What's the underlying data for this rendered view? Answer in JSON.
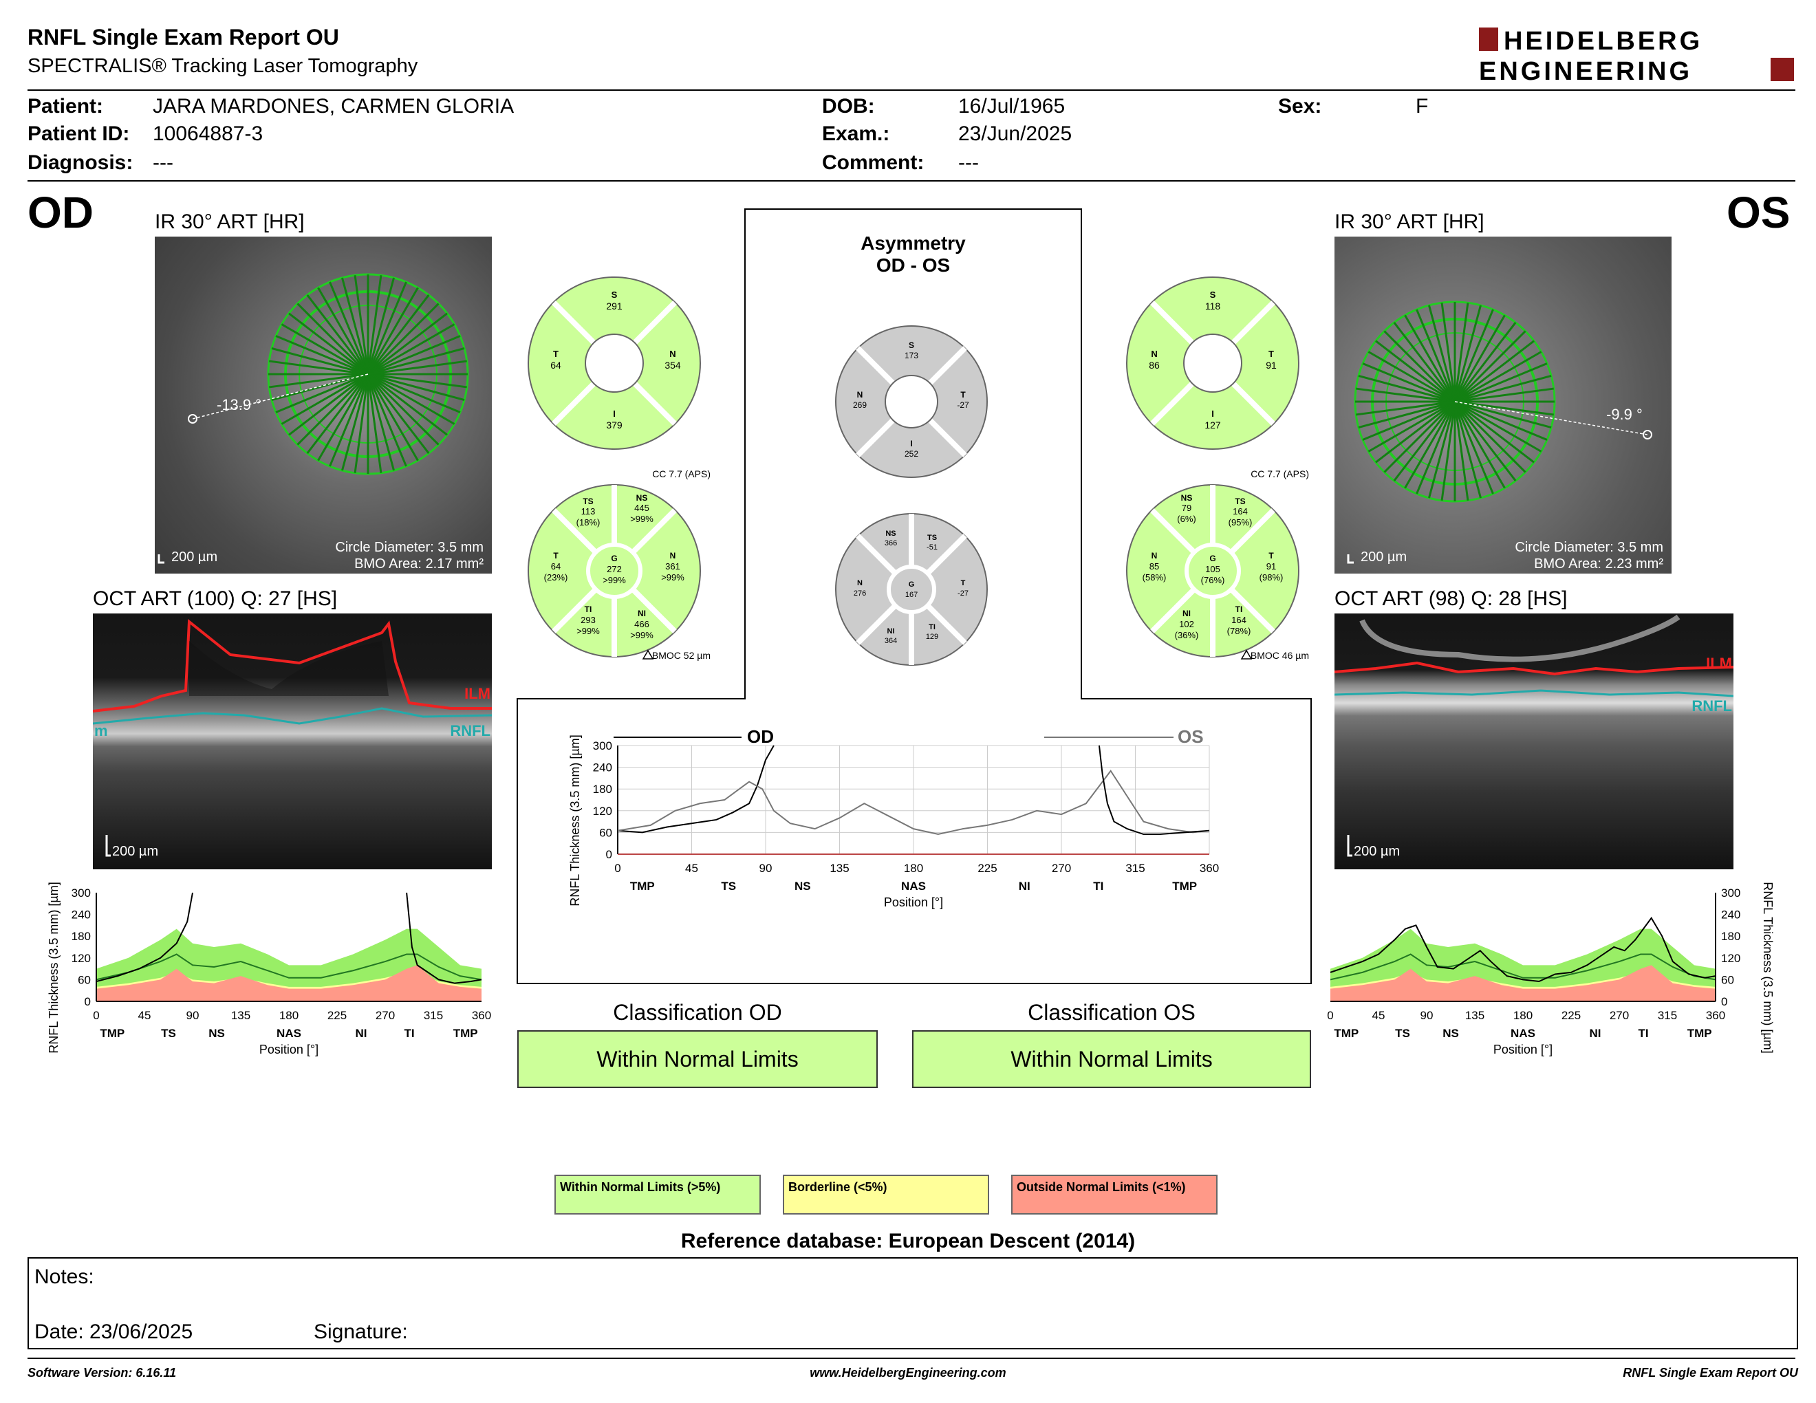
{
  "header": {
    "title": "RNFL Single Exam Report OU",
    "subtitle": "SPECTRALIS® Tracking Laser Tomography",
    "logo_line1": "HEIDELBERG",
    "logo_line2": "ENGINEERING"
  },
  "patient": {
    "patient_label": "Patient:",
    "patient": "JARA MARDONES, CARMEN GLORIA",
    "id_label": "Patient ID:",
    "id": "10064887-3",
    "diagnosis_label": "Diagnosis:",
    "diagnosis": "---",
    "dob_label": "DOB:",
    "dob": "16/Jul/1965",
    "exam_label": "Exam.:",
    "exam": "23/Jun/2025",
    "comment_label": "Comment:",
    "comment": "---",
    "sex_label": "Sex:",
    "sex": "F"
  },
  "od": {
    "eye": "OD",
    "ir_caption": "IR 30° ART [HR]",
    "angle": "-13.9 °",
    "scale": "200 µm",
    "circle": "Circle Diameter: 3.5 mm",
    "bmo": "BMO Area: 2.17 mm²",
    "oct_caption": "OCT ART (100) Q: 27 [HS]",
    "oct_scale": "200 µm",
    "ilm": "ILM",
    "rnfl": "RNFL",
    "rnfl_left_frag": "m",
    "quad": {
      "S": "291",
      "N": "354",
      "I": "379",
      "T": "64"
    },
    "cc": "CC 7.7 (APS)",
    "bmoc": "BMOC 52 µm",
    "sectors": {
      "TS": [
        "113",
        "(18%)"
      ],
      "NS": [
        "445",
        ">99%"
      ],
      "T": [
        "64",
        "(23%)"
      ],
      "G": [
        "272",
        ">99%"
      ],
      "N": [
        "361",
        ">99%"
      ],
      "TI": [
        "293",
        ">99%"
      ],
      "NI": [
        "466",
        ">99%"
      ]
    }
  },
  "os": {
    "eye": "OS",
    "ir_caption": "IR 30° ART [HR]",
    "angle": "-9.9 °",
    "scale": "200 µm",
    "circle": "Circle Diameter: 3.5 mm",
    "bmo": "BMO Area: 2.23 mm²",
    "oct_caption": "OCT ART (98) Q: 28 [HS]",
    "oct_scale": "200 µm",
    "ilm": "ILM",
    "rnfl": "RNFL",
    "quad": {
      "S": "118",
      "N": "86",
      "I": "127",
      "T": "91"
    },
    "cc": "CC 7.7 (APS)",
    "bmoc": "BMOC 46 µm",
    "sectors": {
      "NS": [
        "79",
        "(6%)"
      ],
      "TS": [
        "164",
        "(95%)"
      ],
      "N": [
        "85",
        "(58%)"
      ],
      "G": [
        "105",
        "(76%)"
      ],
      "T": [
        "91",
        "(98%)"
      ],
      "NI": [
        "102",
        "(36%)"
      ],
      "TI": [
        "164",
        "(78%)"
      ]
    }
  },
  "asymmetry": {
    "title1": "Asymmetry",
    "title2": "OD - OS",
    "quad": {
      "S": "173",
      "N": "269",
      "T": "-27",
      "I": "252"
    },
    "sectors": {
      "NS": "366",
      "TS": "-51",
      "N": "276",
      "G": "167",
      "T": "-27",
      "NI": "364",
      "TI": "129"
    }
  },
  "chart_data": [
    {
      "type": "line",
      "title": "",
      "legend": [
        "OD",
        "OS"
      ],
      "ylabel": "RNFL Thickness (3.5 mm) [µm]",
      "xlabel": "Position [°]",
      "xlim": [
        0,
        360
      ],
      "ylim": [
        0,
        300
      ],
      "x_ticks": [
        "0",
        "45",
        "90",
        "135",
        "180",
        "225",
        "270",
        "315",
        "360"
      ],
      "y_ticks": [
        "0",
        "60",
        "120",
        "180",
        "240",
        "300"
      ],
      "sectors": [
        "TMP",
        "TS",
        "NS",
        "NAS",
        "NI",
        "TI",
        "TMP"
      ],
      "series": [
        {
          "name": "OD",
          "color": "#000000",
          "x": [
            0,
            15,
            30,
            45,
            60,
            70,
            80,
            85,
            90,
            95
          ],
          "y": [
            65,
            60,
            75,
            85,
            95,
            115,
            140,
            190,
            260,
            300
          ]
        },
        {
          "name": "OS",
          "color": "#777777",
          "x": [
            0,
            20,
            35,
            50,
            65,
            80,
            88,
            95,
            105,
            120,
            135,
            150,
            165,
            180,
            195,
            210,
            225,
            240,
            255,
            270,
            285,
            290,
            300,
            310,
            320,
            335,
            350,
            360
          ],
          "y": [
            65,
            80,
            120,
            140,
            150,
            200,
            180,
            120,
            85,
            70,
            100,
            140,
            105,
            70,
            55,
            70,
            80,
            95,
            120,
            110,
            140,
            170,
            230,
            160,
            90,
            70,
            60,
            65
          ]
        },
        {
          "name": "",
          "color": "#000000",
          "x": [
            293,
            295,
            298,
            302,
            310,
            320,
            330,
            345,
            360
          ],
          "y": [
            300,
            220,
            140,
            90,
            70,
            55,
            55,
            60,
            65
          ]
        }
      ]
    },
    {
      "type": "area",
      "title": "",
      "ylabel": "RNFL Thickness (3.5 mm) [µm]",
      "xlabel": "Position [°]",
      "xlim": [
        0,
        360
      ],
      "ylim": [
        0,
        300
      ],
      "x_ticks": [
        "0",
        "45",
        "90",
        "135",
        "180",
        "225",
        "270",
        "315",
        "360"
      ],
      "y_ticks": [
        "0",
        "60",
        "120",
        "180",
        "240",
        "300"
      ],
      "sectors": [
        "TMP",
        "TS",
        "NS",
        "NAS",
        "NI",
        "TI",
        "TMP"
      ],
      "normal_band_x": [
        0,
        30,
        60,
        75,
        90,
        110,
        135,
        160,
        180,
        210,
        240,
        270,
        290,
        300,
        320,
        340,
        360
      ],
      "normal_upper": [
        90,
        120,
        170,
        200,
        160,
        150,
        160,
        130,
        100,
        100,
        130,
        170,
        200,
        200,
        150,
        100,
        90
      ],
      "normal_mean": [
        60,
        80,
        110,
        130,
        100,
        95,
        110,
        85,
        65,
        65,
        85,
        110,
        130,
        130,
        95,
        70,
        60
      ],
      "lower_5": [
        40,
        50,
        65,
        80,
        60,
        55,
        65,
        50,
        40,
        40,
        50,
        65,
        80,
        80,
        55,
        45,
        40
      ],
      "lower_1": [
        35,
        45,
        60,
        90,
        55,
        50,
        70,
        45,
        35,
        35,
        45,
        60,
        90,
        100,
        50,
        40,
        35
      ],
      "series": [
        {
          "name": "OD",
          "x": [
            0,
            20,
            40,
            60,
            75,
            85,
            90
          ],
          "y": [
            55,
            70,
            90,
            120,
            160,
            220,
            300
          ]
        },
        {
          "name": "",
          "x": [
            290,
            295,
            300,
            310,
            320,
            335,
            350,
            360
          ],
          "y": [
            300,
            150,
            100,
            80,
            60,
            50,
            55,
            60
          ]
        }
      ]
    },
    {
      "type": "area",
      "title": "",
      "ylabel": "RNFL Thickness (3.5 mm) [µm]",
      "xlabel": "Position [°]",
      "xlim": [
        0,
        360
      ],
      "ylim": [
        0,
        300
      ],
      "x_ticks": [
        "0",
        "45",
        "90",
        "135",
        "180",
        "225",
        "270",
        "315",
        "360"
      ],
      "y_ticks": [
        "0",
        "60",
        "120",
        "180",
        "240",
        "300"
      ],
      "sectors": [
        "TMP",
        "TS",
        "NS",
        "NAS",
        "NI",
        "TI",
        "TMP"
      ],
      "normal_band_x": [
        0,
        30,
        60,
        75,
        90,
        110,
        135,
        160,
        180,
        210,
        240,
        270,
        290,
        300,
        320,
        340,
        360
      ],
      "normal_upper": [
        90,
        120,
        170,
        200,
        160,
        150,
        160,
        130,
        100,
        100,
        130,
        170,
        200,
        200,
        150,
        100,
        90
      ],
      "normal_mean": [
        60,
        80,
        110,
        130,
        100,
        95,
        110,
        85,
        65,
        65,
        85,
        110,
        130,
        130,
        95,
        70,
        60
      ],
      "lower_5": [
        40,
        50,
        65,
        80,
        60,
        55,
        65,
        50,
        40,
        40,
        50,
        65,
        80,
        80,
        55,
        45,
        40
      ],
      "lower_1": [
        35,
        45,
        60,
        90,
        55,
        50,
        70,
        45,
        35,
        35,
        45,
        60,
        90,
        100,
        50,
        40,
        35
      ],
      "series": [
        {
          "name": "OS",
          "x": [
            0,
            15,
            30,
            45,
            60,
            70,
            80,
            90,
            100,
            115,
            130,
            140,
            150,
            165,
            180,
            195,
            210,
            225,
            240,
            255,
            265,
            275,
            285,
            295,
            300,
            310,
            320,
            335,
            350,
            360
          ],
          "y": [
            80,
            95,
            110,
            130,
            170,
            200,
            210,
            150,
            95,
            90,
            120,
            140,
            110,
            70,
            60,
            55,
            75,
            80,
            100,
            130,
            150,
            140,
            170,
            210,
            230,
            180,
            110,
            75,
            65,
            70
          ]
        }
      ]
    }
  ],
  "classification": {
    "od_title": "Classification OD",
    "od_value": "Within Normal Limits",
    "os_title": "Classification OS",
    "os_value": "Within Normal Limits"
  },
  "legend": {
    "wnl": "Within Normal Limits (>5%)",
    "bl": "Borderline (<5%)",
    "onl": "Outside Normal Limits (<1%)",
    "wnl_color": "#ccff99",
    "bl_color": "#ffff99",
    "onl_color": "#ff9988"
  },
  "reference": "Reference database: European Descent (2014)",
  "notes": {
    "notes_label": "Notes:",
    "date_label": "Date: 23/06/2025",
    "signature_label": "Signature:"
  },
  "footer": {
    "left": "Software Version: 6.16.11",
    "center": "www.HeidelbergEngineering.com",
    "right": "RNFL Single Exam Report OU"
  }
}
